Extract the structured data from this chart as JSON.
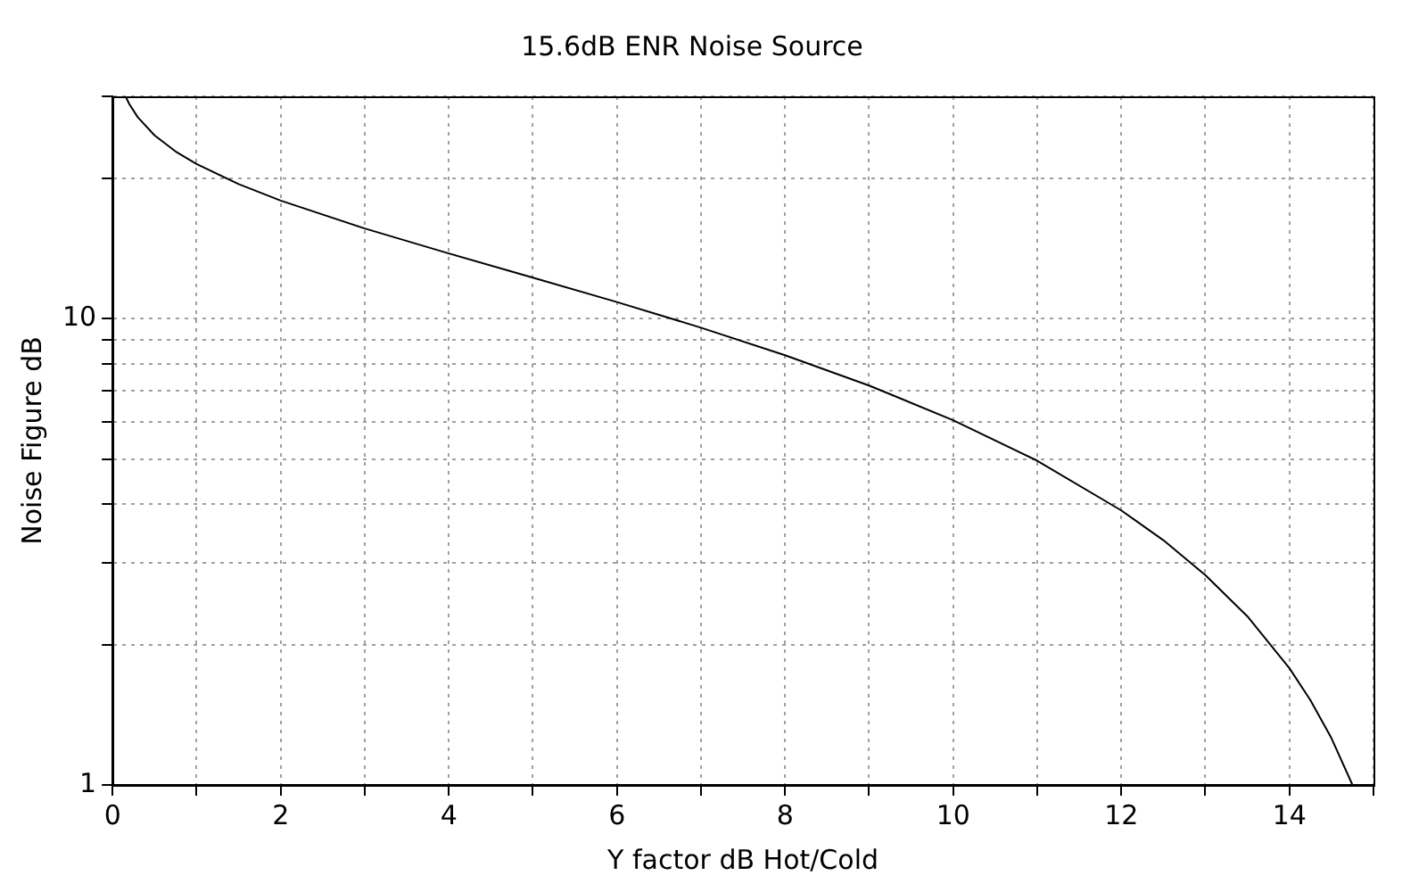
{
  "chart_data": {
    "type": "line",
    "title": "15.6dB ENR Noise Source",
    "xlabel": "Y factor dB Hot/Cold",
    "ylabel": "Noise Figure dB",
    "log": "y",
    "grid": true,
    "legend": false,
    "marker": "none",
    "line_style": "solid",
    "xlim": [
      0,
      15
    ],
    "ylim": [
      1,
      30
    ],
    "xticks": [
      0,
      {
        "value": 1,
        "label": null
      },
      2,
      {
        "value": 3,
        "label": null
      },
      4,
      {
        "value": 5,
        "label": null
      },
      6,
      {
        "value": 7,
        "label": null
      },
      8,
      {
        "value": 9,
        "label": null
      },
      10,
      {
        "value": 11,
        "label": null
      },
      12,
      {
        "value": 13,
        "label": null
      },
      14,
      {
        "value": 15,
        "label": null
      }
    ],
    "yticks": [
      1,
      {
        "value": 2,
        "label": null
      },
      {
        "value": 3,
        "label": null
      },
      {
        "value": 4,
        "label": null
      },
      {
        "value": 5,
        "label": null
      },
      {
        "value": 6,
        "label": null
      },
      {
        "value": 7,
        "label": null
      },
      {
        "value": 8,
        "label": null
      },
      {
        "value": 9,
        "label": null
      },
      10,
      {
        "value": 20,
        "label": null
      },
      {
        "value": 30,
        "label": null
      }
    ],
    "x": [
      0.16,
      0.2,
      0.3,
      0.5,
      0.75,
      1,
      1.5,
      2,
      3,
      4,
      5,
      6,
      7,
      8,
      9,
      10,
      11,
      12,
      12.5,
      13,
      13.5,
      14,
      14.25,
      14.5,
      14.75
    ],
    "series": [
      {
        "color": "#000000",
        "values": [
          29.86,
          28.87,
          27.06,
          24.74,
          22.85,
          21.47,
          19.45,
          17.93,
          15.62,
          13.81,
          12.25,
          10.86,
          9.57,
          8.35,
          7.19,
          6.06,
          4.96,
          3.88,
          3.35,
          2.82,
          2.3,
          1.78,
          1.52,
          1.26,
          1.0
        ]
      }
    ]
  }
}
